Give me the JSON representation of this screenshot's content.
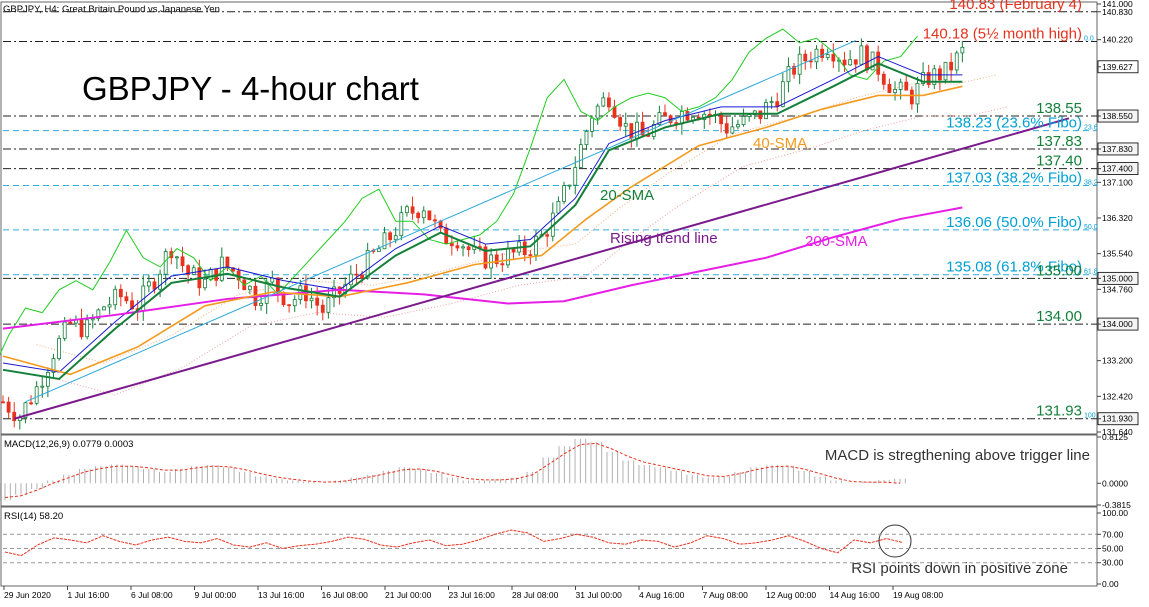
{
  "header": {
    "symbol_line": "GBPJPY, H4:  Great Britain Pound vs Japanese Yen"
  },
  "main_title": "GBPJPY - 4-hour chart",
  "colors": {
    "red": "#e8321f",
    "cyan": "#00a0d6",
    "green": "#14803a",
    "lime": "#22cc22",
    "orange": "#f39a1e",
    "magenta": "#e61ee6",
    "purple": "#7a1a8c",
    "navy": "#1a1ad0",
    "axis": "#444444"
  },
  "chart_data": [
    {
      "type": "line",
      "title": "GBPJPY - 4-hour chart",
      "ylim": [
        131.64,
        141.0
      ],
      "y_axis_labels": [
        "141.000",
        "140.830",
        "140.220",
        "139.627",
        "138.550",
        "137.830",
        "137.400",
        "137.100",
        "136.320",
        "135.540",
        "135.000",
        "134.760",
        "134.000",
        "133.200",
        "132.420",
        "131.930",
        "131.640"
      ],
      "current_price": 139.627,
      "x_labels": [
        "29 Jun 2020",
        "1 Jul 16:00",
        "6 Jul 08:00",
        "9 Jul 00:00",
        "13 Jul 16:00",
        "16 Jul 08:00",
        "21 Jul 00:00",
        "23 Jul 16:00",
        "28 Jul 08:00",
        "31 Jul 00:00",
        "4 Aug 16:00",
        "7 Aug 08:00",
        "12 Aug 00:00",
        "14 Aug 16:00",
        "19 Aug 08:00"
      ],
      "levels": [
        {
          "value": 140.83,
          "label": "140.83 (February 4)",
          "color": "red"
        },
        {
          "value": 140.18,
          "label": "140.18 (5½ month high)",
          "color": "red",
          "fibo": "0.0"
        },
        {
          "value": 138.55,
          "label": "138.55",
          "color": "green"
        },
        {
          "value": 138.23,
          "label": "138.23 (23.6% Fibo)",
          "color": "cyan",
          "fibo": "23.6"
        },
        {
          "value": 137.83,
          "label": "137.83",
          "color": "green"
        },
        {
          "value": 137.4,
          "label": "137.40",
          "color": "green"
        },
        {
          "value": 137.03,
          "label": "137.03 (38.2% Fibo)",
          "color": "cyan",
          "fibo": "38.2"
        },
        {
          "value": 136.06,
          "label": "136.06 (50.0% Fibo)",
          "color": "cyan",
          "fibo": "50.0"
        },
        {
          "value": 135.08,
          "label": "135.08 (61.8% Fibo)",
          "color": "cyan",
          "fibo": "61.8"
        },
        {
          "value": 135.0,
          "label": "135.00",
          "color": "green"
        },
        {
          "value": 134.0,
          "label": "134.00",
          "color": "green"
        },
        {
          "value": 131.93,
          "label": "131.93",
          "color": "green",
          "fibo": "100.0"
        }
      ],
      "annotations": [
        {
          "text": "20-SMA",
          "color": "green"
        },
        {
          "text": "40-SMA",
          "color": "orange"
        },
        {
          "text": "200-SMA",
          "color": "magenta"
        },
        {
          "text": "Rising trend line",
          "color": "purple"
        }
      ],
      "price_path": [
        [
          0,
          132.3
        ],
        [
          3,
          132.0
        ],
        [
          6,
          132.6
        ],
        [
          9,
          133.4
        ],
        [
          12,
          134.0
        ],
        [
          15,
          133.9
        ],
        [
          18,
          134.4
        ],
        [
          21,
          134.6
        ],
        [
          24,
          134.4
        ],
        [
          27,
          135.0
        ],
        [
          30,
          135.7
        ],
        [
          33,
          135.1
        ],
        [
          36,
          134.9
        ],
        [
          39,
          135.3
        ],
        [
          42,
          135.1
        ],
        [
          45,
          134.6
        ],
        [
          48,
          134.9
        ],
        [
          51,
          134.5
        ],
        [
          54,
          134.7
        ],
        [
          57,
          134.3
        ],
        [
          60,
          134.7
        ],
        [
          63,
          135.1
        ],
        [
          66,
          135.5
        ],
        [
          69,
          135.9
        ],
        [
          72,
          136.4
        ],
        [
          75,
          136.6
        ],
        [
          78,
          135.9
        ],
        [
          81,
          135.9
        ],
        [
          84,
          135.5
        ],
        [
          87,
          135.4
        ],
        [
          90,
          135.5
        ],
        [
          93,
          135.6
        ],
        [
          96,
          135.9
        ],
        [
          99,
          136.5
        ],
        [
          102,
          137.5
        ],
        [
          105,
          138.6
        ],
        [
          108,
          139.0
        ],
        [
          111,
          138.3
        ],
        [
          114,
          138.1
        ],
        [
          117,
          138.4
        ],
        [
          120,
          138.6
        ],
        [
          123,
          138.7
        ],
        [
          126,
          138.6
        ],
        [
          129,
          138.3
        ],
        [
          132,
          138.4
        ],
        [
          135,
          138.6
        ],
        [
          138,
          139.0
        ],
        [
          141,
          139.6
        ],
        [
          144,
          139.9
        ],
        [
          147,
          140.1
        ],
        [
          150,
          139.8
        ],
        [
          153,
          139.9
        ],
        [
          156,
          139.6
        ],
        [
          159,
          139.1
        ],
        [
          162,
          139.0
        ],
        [
          165,
          139.4
        ],
        [
          168,
          139.5
        ],
        [
          171,
          139.95
        ]
      ],
      "sma20": [
        [
          0,
          133.0
        ],
        [
          10,
          132.8
        ],
        [
          20,
          133.9
        ],
        [
          30,
          134.9
        ],
        [
          40,
          135.1
        ],
        [
          50,
          134.8
        ],
        [
          60,
          134.6
        ],
        [
          70,
          135.5
        ],
        [
          78,
          136.0
        ],
        [
          86,
          135.6
        ],
        [
          94,
          135.7
        ],
        [
          102,
          136.6
        ],
        [
          108,
          137.8
        ],
        [
          118,
          138.3
        ],
        [
          128,
          138.6
        ],
        [
          138,
          138.6
        ],
        [
          148,
          139.2
        ],
        [
          156,
          139.7
        ],
        [
          164,
          139.3
        ],
        [
          171,
          139.3
        ]
      ],
      "sma40": [
        [
          0,
          133.3
        ],
        [
          12,
          132.9
        ],
        [
          24,
          133.5
        ],
        [
          36,
          134.4
        ],
        [
          48,
          134.7
        ],
        [
          60,
          134.6
        ],
        [
          72,
          134.9
        ],
        [
          84,
          135.3
        ],
        [
          96,
          135.5
        ],
        [
          104,
          136.3
        ],
        [
          112,
          137.0
        ],
        [
          124,
          137.9
        ],
        [
          136,
          138.3
        ],
        [
          146,
          138.7
        ],
        [
          156,
          139.0
        ],
        [
          164,
          139.0
        ],
        [
          171,
          139.2
        ]
      ],
      "sma200": [
        [
          0,
          133.9
        ],
        [
          20,
          134.2
        ],
        [
          40,
          134.55
        ],
        [
          60,
          134.75
        ],
        [
          75,
          134.65
        ],
        [
          90,
          134.45
        ],
        [
          100,
          134.5
        ],
        [
          112,
          134.85
        ],
        [
          124,
          135.15
        ],
        [
          136,
          135.45
        ],
        [
          148,
          135.9
        ],
        [
          160,
          136.3
        ],
        [
          171,
          136.55
        ]
      ],
      "trend_line": [
        [
          2,
          131.93
        ],
        [
          190,
          138.5
        ]
      ],
      "channel_line": [
        [
          4,
          132.3
        ],
        [
          152,
          140.2
        ]
      ]
    },
    {
      "type": "bar",
      "title": "MACD(12,26,9) 0.0779 0.0003",
      "annotation": "MACD is stregthening above trigger line",
      "y_axis_labels": [
        "0.8125",
        "0.0000",
        "-0.3815"
      ],
      "ylim": [
        -0.3815,
        0.8125
      ],
      "values": [
        -0.3,
        -0.2,
        -0.1,
        0.05,
        0.15,
        0.25,
        0.3,
        0.33,
        0.3,
        0.25,
        0.2,
        0.25,
        0.3,
        0.32,
        0.28,
        0.2,
        0.12,
        0.08,
        0.05,
        0.03,
        0.0,
        0.05,
        0.1,
        0.15,
        0.22,
        0.28,
        0.25,
        0.18,
        0.1,
        0.05,
        0.05,
        0.07,
        0.1,
        0.2,
        0.45,
        0.65,
        0.78,
        0.72,
        0.55,
        0.4,
        0.32,
        0.28,
        0.22,
        0.15,
        0.1,
        0.12,
        0.2,
        0.28,
        0.32,
        0.3,
        0.22,
        0.12,
        0.05,
        0.0,
        0.03,
        0.06,
        0.08
      ],
      "signal": [
        -0.25,
        -0.22,
        -0.12,
        0.0,
        0.1,
        0.2,
        0.26,
        0.3,
        0.3,
        0.27,
        0.23,
        0.23,
        0.27,
        0.3,
        0.29,
        0.24,
        0.17,
        0.11,
        0.07,
        0.04,
        0.02,
        0.03,
        0.07,
        0.12,
        0.18,
        0.24,
        0.25,
        0.21,
        0.14,
        0.08,
        0.06,
        0.06,
        0.08,
        0.15,
        0.33,
        0.52,
        0.68,
        0.7,
        0.6,
        0.47,
        0.37,
        0.31,
        0.25,
        0.19,
        0.13,
        0.12,
        0.17,
        0.24,
        0.29,
        0.3,
        0.25,
        0.17,
        0.09,
        0.03,
        0.02,
        0.02,
        0.0
      ]
    },
    {
      "type": "line",
      "title": "RSI(14) 58.20",
      "annotation": "RSI points down in positive zone",
      "y_axis_labels": [
        "100.00",
        "70.00",
        "50.00",
        "30.00",
        "0.00"
      ],
      "ylim": [
        0,
        100
      ],
      "values": [
        45,
        40,
        55,
        65,
        62,
        58,
        68,
        60,
        55,
        62,
        66,
        60,
        58,
        64,
        55,
        52,
        58,
        50,
        54,
        56,
        60,
        66,
        63,
        55,
        52,
        58,
        62,
        54,
        56,
        62,
        70,
        76,
        72,
        60,
        64,
        70,
        66,
        58,
        56,
        62,
        60,
        52,
        58,
        68,
        64,
        56,
        58,
        62,
        68,
        60,
        50,
        44,
        62,
        58,
        64,
        58.2
      ]
    }
  ]
}
